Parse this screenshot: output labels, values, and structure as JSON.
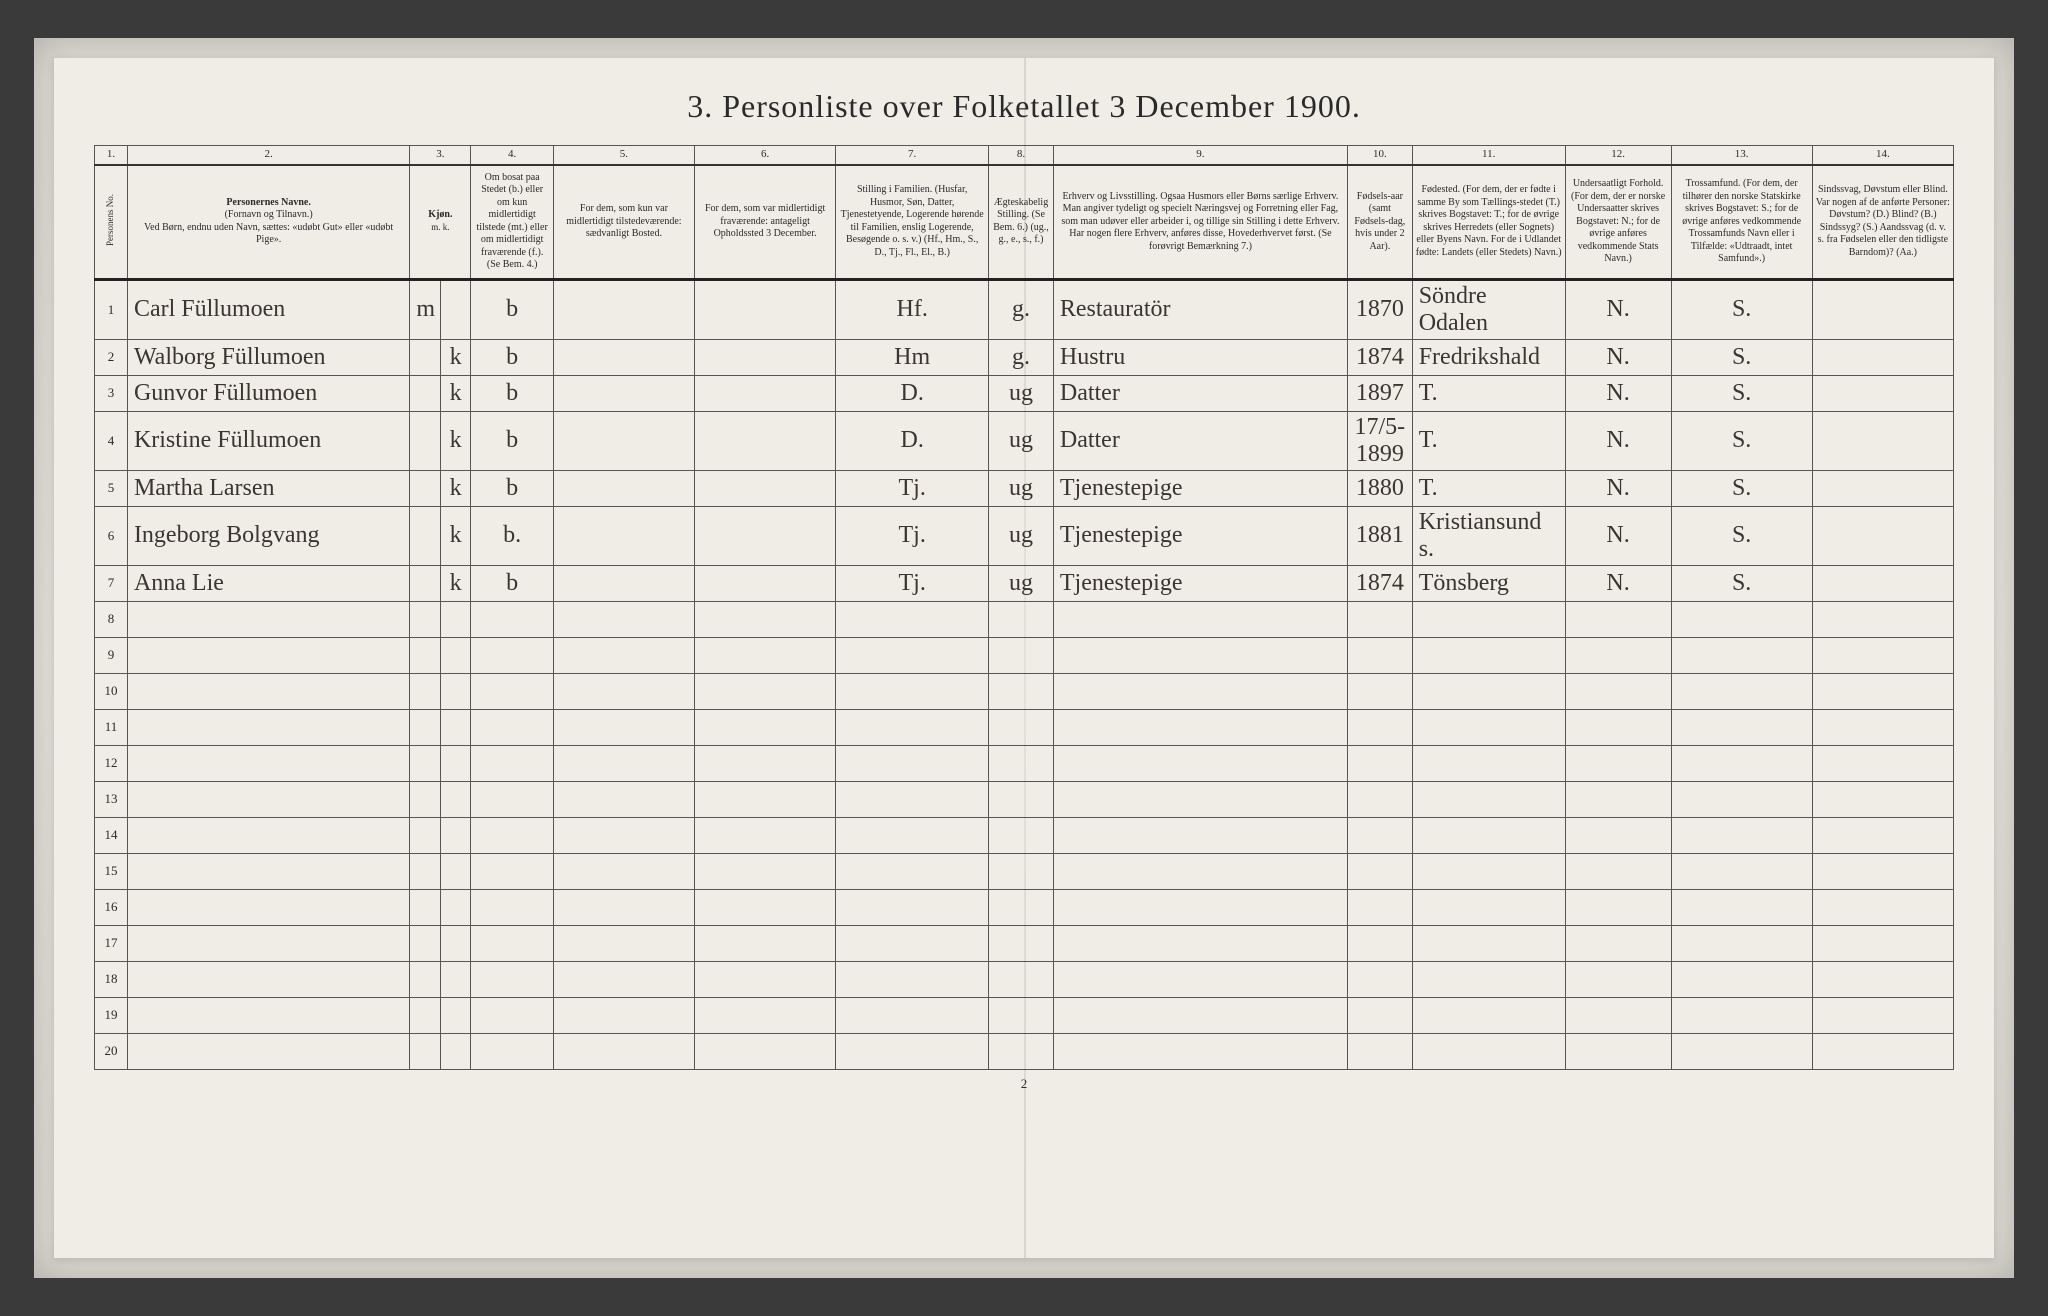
{
  "title": "3. Personliste over Folketallet 3 December 1900.",
  "page_number": "2",
  "colnums": [
    "1.",
    "2.",
    "3.",
    "4.",
    "5.",
    "6.",
    "7.",
    "8.",
    "9.",
    "10.",
    "11.",
    "12.",
    "13.",
    "14."
  ],
  "headers": {
    "c1": "Personens No.",
    "c2": "Personernes Navne.\n(Fornavn og Tilnavn.)\nVed Børn, endnu uden Navn, sættes: «udøbt Gut» eller «udøbt Pige».",
    "c3": "Kjøn.",
    "c3a": "Mand.",
    "c3b": "Kvinde.",
    "c4": "Om bosat paa Stedet (b.) eller om kun midlertidigt tilstede (mt.) eller om midlertidigt fraværende (f.). (Se Bem. 4.)",
    "c5": "For dem, som kun var midlertidigt tilstedeværende:\nsædvanligt Bosted.",
    "c6": "For dem, som var midlertidigt fraværende:\nantageligt Opholdssted 3 December.",
    "c7": "Stilling i Familien.\n(Husfar, Husmor, Søn, Datter, Tjenestetyende, Logerende hørende til Familien, enslig Logerende, Besøgende o. s. v.)\n(Hf., Hm., S., D., Tj., Fl., El., B.)",
    "c8": "Ægteskabelig Stilling.\n(Se Bem. 6.)\n(ug., g., e., s., f.)",
    "c9": "Erhverv og Livsstilling.\nOgsaa Husmors eller Børns særlige Erhverv. Man angiver tydeligt og specielt Næringsvej og Forretning eller Fag, som man udøver eller arbeider i, og tillige sin Stilling i dette Erhverv. Har nogen flere Erhverv, anføres disse, Hovederhvervet først.\n(Se forøvrigt Bemærkning 7.)",
    "c10": "Fødsels-aar\n(samt Fødsels-dag, hvis under 2 Aar).",
    "c11": "Fødested.\n(For dem, der er fødte i samme By som Tællings-stedet (T.) skrives Bogstavet: T.; for de øvrige skrives Herredets (eller Sognets) eller Byens Navn. For de i Udlandet fødte: Landets (eller Stedets) Navn.)",
    "c12": "Undersaatligt Forhold.\n(For dem, der er norske Undersaatter skrives Bogstavet: N.; for de øvrige anføres vedkommende Stats Navn.)",
    "c13": "Trossamfund.\n(For dem, der tilhører den norske Statskirke skrives Bogstavet: S.; for de øvrige anføres vedkommende Trossamfunds Navn eller i Tilfælde: «Udtraadt, intet Samfund».)",
    "c14": "Sindssvag, Døvstum eller Blind.\nVar nogen af de anførte Personer: Døvstum? (D.) Blind? (B.) Sindssyg? (S.) Aandssvag (d. v. s. fra Fødselen eller den tidligste Barndom)? (Aa.)"
  },
  "rows": [
    {
      "n": "1",
      "name": "Carl Füllumoen",
      "sex_m": "m",
      "sex_k": "",
      "res": "b",
      "c5": "",
      "c6": "",
      "fam": "Hf.",
      "mar": "g.",
      "occ": "Restauratör",
      "birth": "1870",
      "place": "Söndre Odalen",
      "nat": "N.",
      "rel": "S.",
      "dis": ""
    },
    {
      "n": "2",
      "name": "Walborg Füllumoen",
      "sex_m": "",
      "sex_k": "k",
      "res": "b",
      "c5": "",
      "c6": "",
      "fam": "Hm",
      "mar": "g.",
      "occ": "Hustru",
      "birth": "1874",
      "place": "Fredrikshald",
      "nat": "N.",
      "rel": "S.",
      "dis": ""
    },
    {
      "n": "3",
      "name": "Gunvor Füllumoen",
      "sex_m": "",
      "sex_k": "k",
      "res": "b",
      "c5": "",
      "c6": "",
      "fam": "D.",
      "mar": "ug",
      "occ": "Datter",
      "birth": "1897",
      "place": "T.",
      "nat": "N.",
      "rel": "S.",
      "dis": ""
    },
    {
      "n": "4",
      "name": "Kristine Füllumoen",
      "sex_m": "",
      "sex_k": "k",
      "res": "b",
      "c5": "",
      "c6": "",
      "fam": "D.",
      "mar": "ug",
      "occ": "Datter",
      "birth": "17/5-1899",
      "place": "T.",
      "nat": "N.",
      "rel": "S.",
      "dis": ""
    },
    {
      "n": "5",
      "name": "Martha Larsen",
      "sex_m": "",
      "sex_k": "k",
      "res": "b",
      "c5": "",
      "c6": "",
      "fam": "Tj.",
      "mar": "ug",
      "occ": "Tjenestepige",
      "birth": "1880",
      "place": "T.",
      "nat": "N.",
      "rel": "S.",
      "dis": ""
    },
    {
      "n": "6",
      "name": "Ingeborg Bolgvang",
      "sex_m": "",
      "sex_k": "k",
      "res": "b.",
      "c5": "",
      "c6": "",
      "fam": "Tj.",
      "mar": "ug",
      "occ": "Tjenestepige",
      "birth": "1881",
      "place": "Kristiansund s.",
      "nat": "N.",
      "rel": "S.",
      "dis": ""
    },
    {
      "n": "7",
      "name": "Anna Lie",
      "sex_m": "",
      "sex_k": "k",
      "res": "b",
      "c5": "",
      "c6": "",
      "fam": "Tj.",
      "mar": "ug",
      "occ": "Tjenestepige",
      "birth": "1874",
      "place": "Tönsberg",
      "nat": "N.",
      "rel": "S.",
      "dis": ""
    },
    {
      "n": "8"
    },
    {
      "n": "9"
    },
    {
      "n": "10"
    },
    {
      "n": "11"
    },
    {
      "n": "12"
    },
    {
      "n": "13"
    },
    {
      "n": "14"
    },
    {
      "n": "15"
    },
    {
      "n": "16"
    },
    {
      "n": "17"
    },
    {
      "n": "18"
    },
    {
      "n": "19"
    },
    {
      "n": "20"
    }
  ],
  "colors": {
    "paper": "#efede5",
    "ink": "#2a2a2a",
    "handwriting": "#3a3530",
    "border": "#555555",
    "heavy_border": "#222222",
    "background": "#3a3a3a"
  },
  "typography": {
    "title_fontsize": 32,
    "header_fontsize": 10,
    "hand_fontsize": 24,
    "rownum_fontsize": 13
  }
}
